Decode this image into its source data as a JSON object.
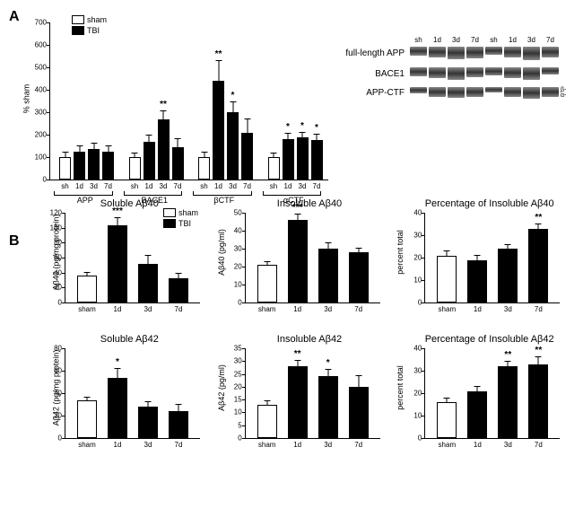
{
  "panelA": {
    "label": "A",
    "ylabel": "% sham",
    "ylim": [
      0,
      700
    ],
    "ytick_step": 100,
    "legend": [
      {
        "label": "sham",
        "fill": "#ffffff"
      },
      {
        "label": "TBI",
        "fill": "#000000"
      }
    ],
    "groups": [
      "APP",
      "BACE1",
      "βCTF",
      "αCTF"
    ],
    "ticks": [
      "sh",
      "1d",
      "3d",
      "7d"
    ],
    "data": {
      "APP": {
        "values": [
          100,
          125,
          135,
          125
        ],
        "err": [
          20,
          25,
          25,
          25
        ],
        "sig": [
          "",
          "",
          "",
          ""
        ]
      },
      "BACE1": {
        "values": [
          100,
          170,
          270,
          145
        ],
        "err": [
          15,
          25,
          35,
          35
        ],
        "sig": [
          "",
          "",
          "**",
          ""
        ]
      },
      "βCTF": {
        "values": [
          100,
          440,
          300,
          210
        ],
        "err": [
          20,
          90,
          45,
          60
        ],
        "sig": [
          "",
          "**",
          "*",
          ""
        ]
      },
      "αCTF": {
        "values": [
          100,
          180,
          190,
          175
        ],
        "err": [
          15,
          25,
          20,
          25
        ],
        "sig": [
          "",
          "*",
          "*",
          "*"
        ]
      }
    },
    "blot": {
      "headers": [
        "sh",
        "1d",
        "3d",
        "7d",
        "sh",
        "1d",
        "3d",
        "7d"
      ],
      "rows": [
        {
          "label": "full-length APP",
          "heights": [
            10,
            12,
            14,
            13,
            9,
            12,
            15,
            12
          ]
        },
        {
          "label": "BACE1",
          "heights": [
            10,
            12,
            14,
            11,
            9,
            12,
            14,
            8
          ]
        },
        {
          "label": "APP-CTF",
          "heights": [
            7,
            11,
            12,
            11,
            6,
            11,
            13,
            11
          ],
          "sublabels": [
            "β-",
            "α-"
          ]
        }
      ]
    }
  },
  "panelB": {
    "label": "B",
    "charts": [
      {
        "title": "Soluble Aβ40",
        "ylabel": "Aβ40 (pg/mg protein)",
        "ylim": [
          0,
          120
        ],
        "ytick_step": 20,
        "ticks": [
          "sham",
          "1d",
          "3d",
          "7d"
        ],
        "values": [
          36,
          103,
          52,
          32
        ],
        "err": [
          4,
          10,
          11,
          7
        ],
        "sig": [
          "",
          "***",
          "",
          ""
        ],
        "legend": true
      },
      {
        "title": "Insoluble Aβ40",
        "ylabel": "Aβ40 (pg/ml)",
        "ylim": [
          0,
          50
        ],
        "ytick_step": 10,
        "ticks": [
          "sham",
          "1d",
          "3d",
          "7d"
        ],
        "values": [
          21,
          46,
          30,
          28
        ],
        "err": [
          1.5,
          3,
          3,
          2
        ],
        "sig": [
          "",
          "***",
          "",
          ""
        ]
      },
      {
        "title": "Percentage of Insoluble Aβ40",
        "ylabel": "percent total",
        "ylim": [
          0,
          40
        ],
        "ytick_step": 10,
        "ticks": [
          "sham",
          "1d",
          "3d",
          "7d"
        ],
        "values": [
          21,
          19,
          24,
          33
        ],
        "err": [
          2,
          2,
          1.5,
          2
        ],
        "sig": [
          "",
          "",
          "",
          "**"
        ]
      },
      {
        "title": "Soluble Aβ42",
        "ylabel": "Aβ42 (pg/mg protein)",
        "ylim": [
          0,
          80
        ],
        "ytick_step": 20,
        "ticks": [
          "sham",
          "1d",
          "3d",
          "7d"
        ],
        "values": [
          34,
          54,
          28,
          24
        ],
        "err": [
          2,
          8,
          4,
          6
        ],
        "sig": [
          "",
          "*",
          "",
          ""
        ]
      },
      {
        "title": "Insoluble Aβ42",
        "ylabel": "Aβ42 (pg/ml)",
        "ylim": [
          0,
          35
        ],
        "ytick_step": 5,
        "ticks": [
          "sham",
          "1d",
          "3d",
          "7d"
        ],
        "values": [
          13,
          28,
          24,
          20
        ],
        "err": [
          1.5,
          2,
          2.5,
          4
        ],
        "sig": [
          "",
          "**",
          "*",
          ""
        ]
      },
      {
        "title": "Percentage of Insoluble Aβ42",
        "ylabel": "percent total",
        "ylim": [
          0,
          40
        ],
        "ytick_step": 10,
        "ticks": [
          "sham",
          "1d",
          "3d",
          "7d"
        ],
        "values": [
          16,
          21,
          32,
          33
        ],
        "err": [
          1.5,
          2,
          2,
          3
        ],
        "sig": [
          "",
          "",
          "**",
          "**"
        ]
      }
    ]
  }
}
